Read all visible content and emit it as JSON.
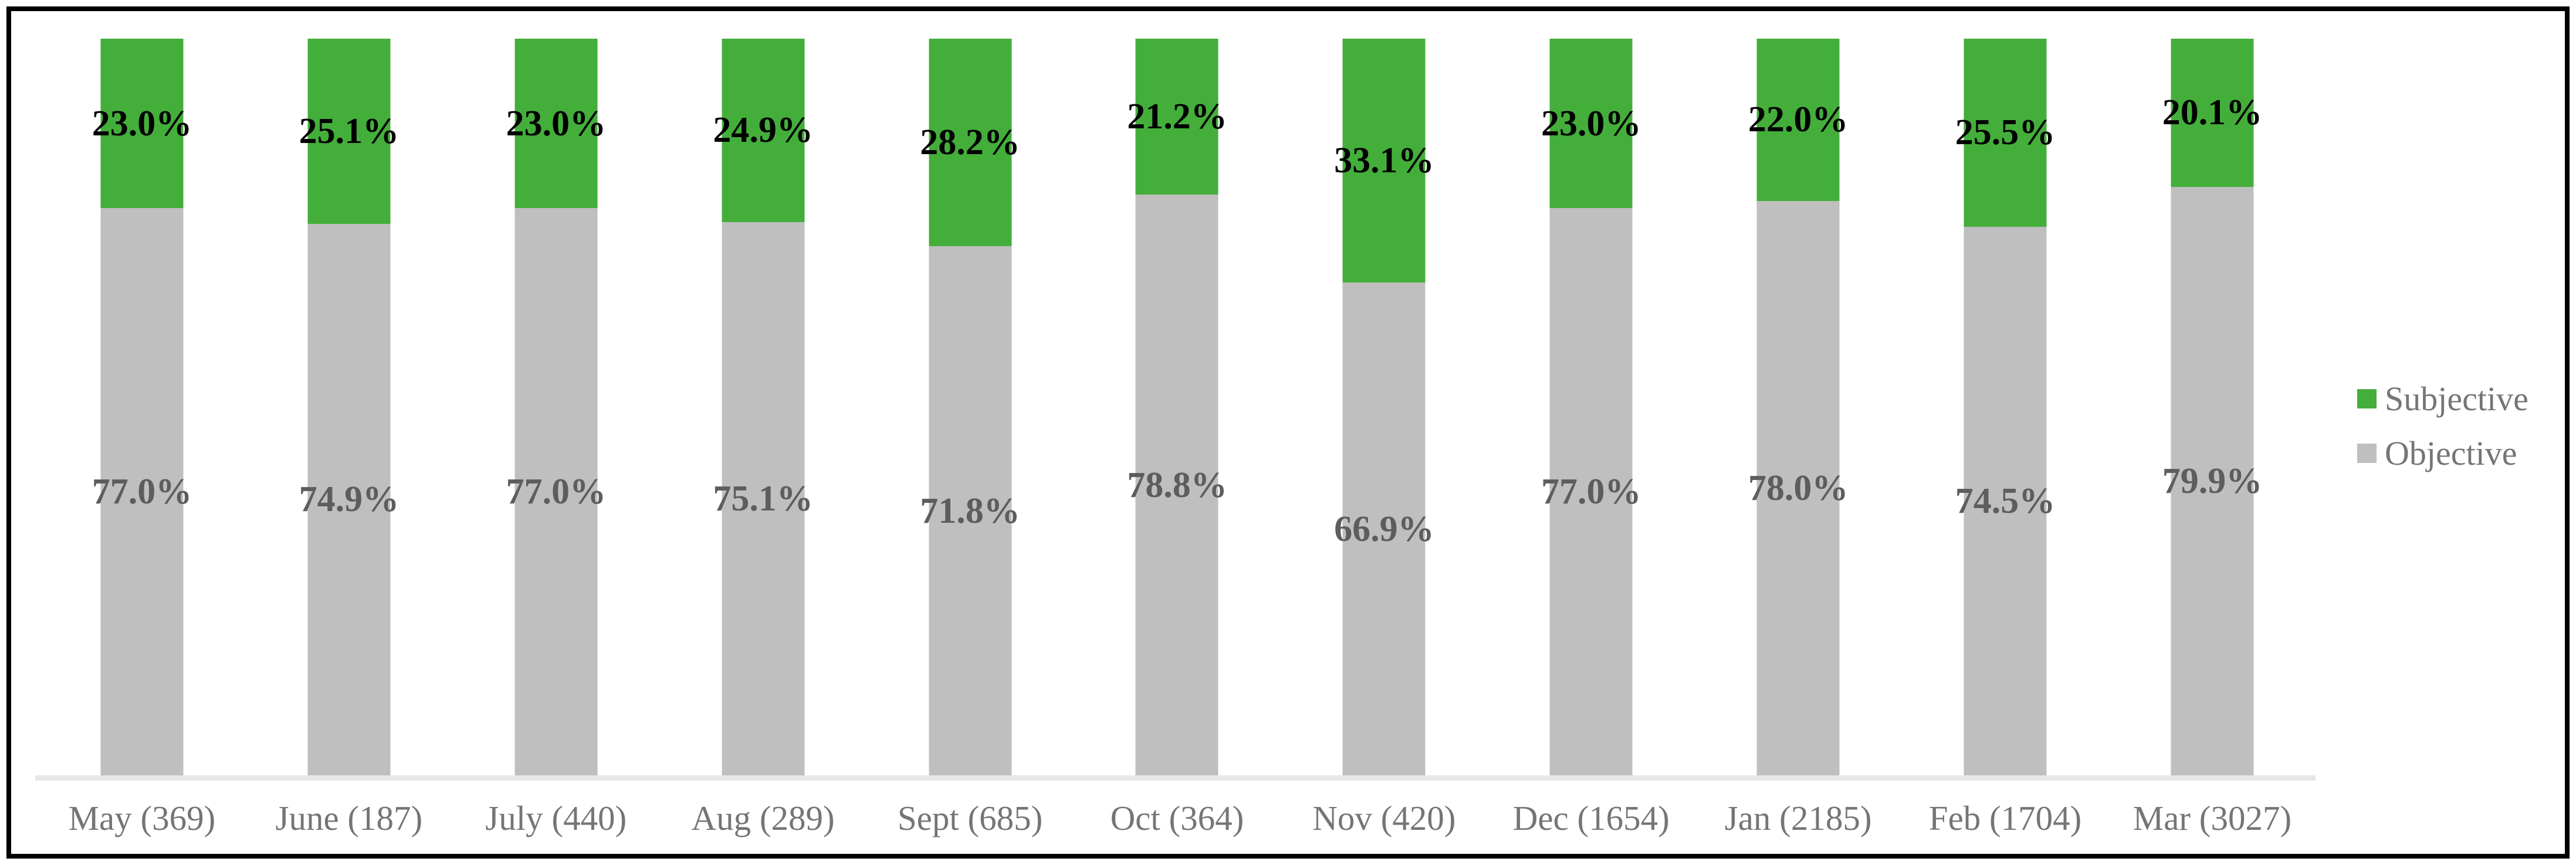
{
  "chart_data": {
    "type": "bar",
    "stacked": "100%",
    "orientation": "vertical",
    "categories": [
      "May (369)",
      "June (187)",
      "July (440)",
      "Aug (289)",
      "Sept (685)",
      "Oct (364)",
      "Nov (420)",
      "Dec (1654)",
      "Jan (2185)",
      "Feb (1704)",
      "Mar (3027)"
    ],
    "series": [
      {
        "name": "Subjective",
        "color": "#44ae3b",
        "label_color": "#000000",
        "values": [
          23.0,
          25.1,
          23.0,
          24.9,
          28.2,
          21.2,
          33.1,
          23.0,
          22.0,
          25.5,
          20.1
        ]
      },
      {
        "name": "Objective",
        "color": "#bfbfbf",
        "label_color": "#5d5d5d",
        "values": [
          77.0,
          74.9,
          77.0,
          75.1,
          71.8,
          78.8,
          66.9,
          77.0,
          78.0,
          74.5,
          79.9
        ]
      }
    ],
    "value_suffix": "%",
    "value_decimals": 1,
    "ylim": [
      0,
      100
    ],
    "grid": "off",
    "legend_position": "right",
    "axis_label_color": "#757575",
    "legend_text_color": "#757575",
    "axis_line_color": "#e7e7e7",
    "frame_color": "#000000"
  }
}
